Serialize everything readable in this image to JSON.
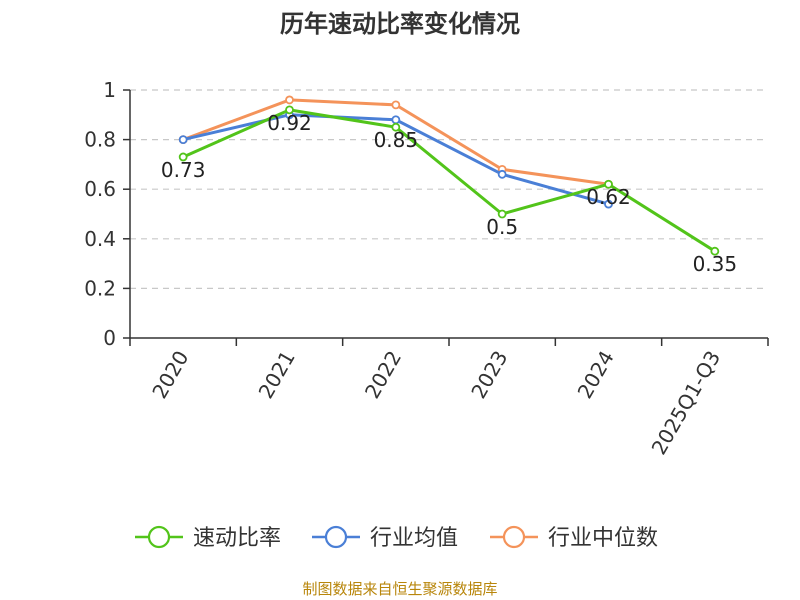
{
  "chart_data": {
    "type": "line",
    "title": "历年速动比率变化情况",
    "categories": [
      "2020",
      "2021",
      "2022",
      "2023",
      "2024",
      "2025Q1-Q3"
    ],
    "y_ticks": [
      "0",
      "0.2",
      "0.4",
      "0.6",
      "0.8",
      "1"
    ],
    "ylim": [
      0,
      1
    ],
    "grid": true,
    "legend_position": "bottom",
    "series": [
      {
        "name": "速动比率",
        "color": "#52c41a",
        "values": [
          0.73,
          0.92,
          0.85,
          0.5,
          0.62,
          0.35
        ],
        "labels": [
          "0.73",
          "0.92",
          "0.85",
          "0.5",
          "0.62",
          "0.35"
        ]
      },
      {
        "name": "行业均值",
        "color": "#4a7fd6",
        "values": [
          0.8,
          0.9,
          0.88,
          0.66,
          0.54,
          null
        ]
      },
      {
        "name": "行业中位数",
        "color": "#f4935a",
        "values": [
          0.8,
          0.96,
          0.94,
          0.68,
          0.62,
          null
        ]
      }
    ]
  },
  "source_note": "制图数据来自恒生聚源数据库"
}
